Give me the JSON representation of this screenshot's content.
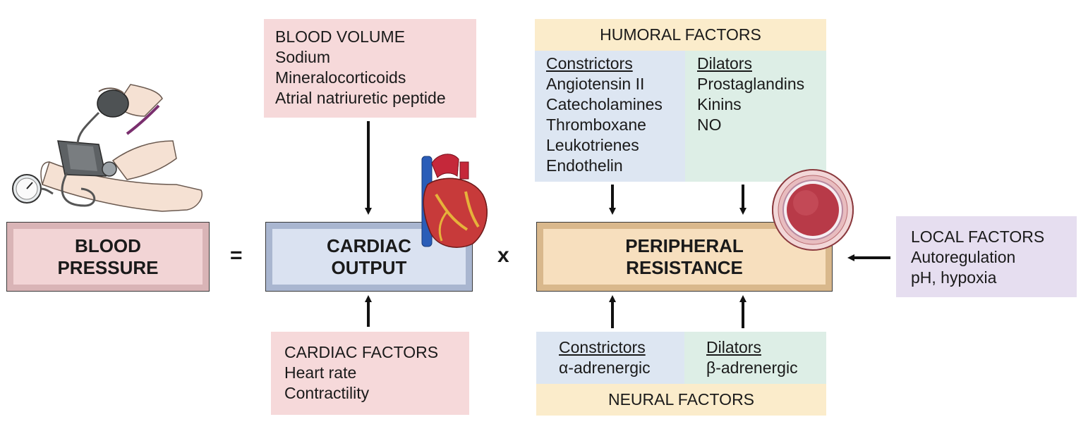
{
  "equation": {
    "blood_pressure": [
      "BLOOD",
      "PRESSURE"
    ],
    "equals": "=",
    "cardiac_output": [
      "CARDIAC",
      "OUTPUT"
    ],
    "times": "x",
    "peripheral_resistance": [
      "PERIPHERAL",
      "RESISTANCE"
    ]
  },
  "blood_volume": {
    "title": "BLOOD VOLUME",
    "items": [
      "Sodium",
      "Mineralocorticoids",
      "Atrial natriuretic peptide"
    ]
  },
  "cardiac_factors": {
    "title": "CARDIAC FACTORS",
    "items": [
      "Heart rate",
      "Contractility"
    ]
  },
  "humoral_factors": {
    "title": "HUMORAL FACTORS",
    "constrictors": {
      "heading": "Constrictors",
      "items": [
        "Angiotensin II",
        "Catecholamines",
        "Thromboxane",
        "Leukotrienes",
        "Endothelin"
      ]
    },
    "dilators": {
      "heading": "Dilators",
      "items": [
        "Prostaglandins",
        "Kinins",
        "NO"
      ]
    }
  },
  "neural_factors": {
    "title": "NEURAL FACTORS",
    "constrictors": {
      "heading": "Constrictors",
      "items": [
        "α-adrenergic"
      ]
    },
    "dilators": {
      "heading": "Dilators",
      "items": [
        "β-adrenergic"
      ]
    }
  },
  "local_factors": {
    "title": "LOCAL FACTORS",
    "items": [
      "Autoregulation",
      "pH, hypoxia"
    ]
  },
  "colors": {
    "pink_box": "#f6d9da",
    "blue_box": "#dde6f2",
    "green_box": "#ddeee6",
    "yellow_box": "#fbeccb",
    "purple_box": "#e6def0",
    "bp_face": "#f2d4d5",
    "co_face": "#dae2f1",
    "pr_face": "#f7dfbe"
  },
  "icons": [
    "blood-pressure-cuff-illustration",
    "heart-illustration",
    "blood-vessel-cross-section-illustration"
  ]
}
